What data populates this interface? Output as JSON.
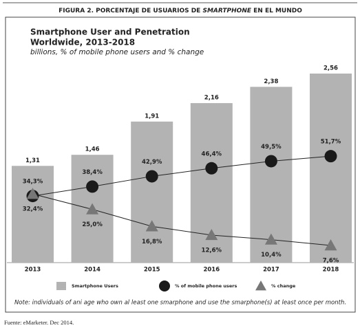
{
  "figure_title": [
    "FIGURA 2. PORCENTAJE DE USUARIOS DE ",
    "SMARTPHONE",
    " EN EL MUNDO"
  ],
  "chart_data": {
    "type": "combo",
    "title": "Smartphone User and Penetration",
    "subtitle": "Worldwide, 2013-2018",
    "units": "billions, % of mobile phone users and % change",
    "categories": [
      "2013",
      "2014",
      "2015",
      "2016",
      "2017",
      "2018"
    ],
    "series": [
      {
        "name": "Smartphone Users",
        "type": "bar",
        "color": "#b3b3b3",
        "values": [
          1.31,
          1.46,
          1.91,
          2.16,
          2.38,
          2.56
        ],
        "value_labels": [
          "1,31",
          "1,46",
          "1,91",
          "2,16",
          "2,38",
          "2,56"
        ]
      },
      {
        "name": "% of mobile phone users",
        "type": "line",
        "marker": "circle",
        "color": "#1a1a1a",
        "values": [
          34.3,
          38.4,
          42.9,
          46.4,
          49.5,
          51.7
        ],
        "value_labels": [
          "34,3%",
          "38,4%",
          "42,9%",
          "46,4%",
          "49,5%",
          "51,7%"
        ]
      },
      {
        "name": "% change",
        "type": "line",
        "marker": "triangle",
        "color": "#777777",
        "values": [
          32.4,
          25.0,
          16.8,
          12.6,
          10.4,
          7.6
        ],
        "value_labels": [
          "32,4%",
          "25,0%",
          "16,8%",
          "12,6%",
          "10,4%",
          "7,6%"
        ]
      }
    ],
    "note": "Note: individuals of ani age who own al least one smarphone and use the smarphone(s) at least once per month."
  },
  "source": "Fuente: eMarketer. Dec 2014."
}
